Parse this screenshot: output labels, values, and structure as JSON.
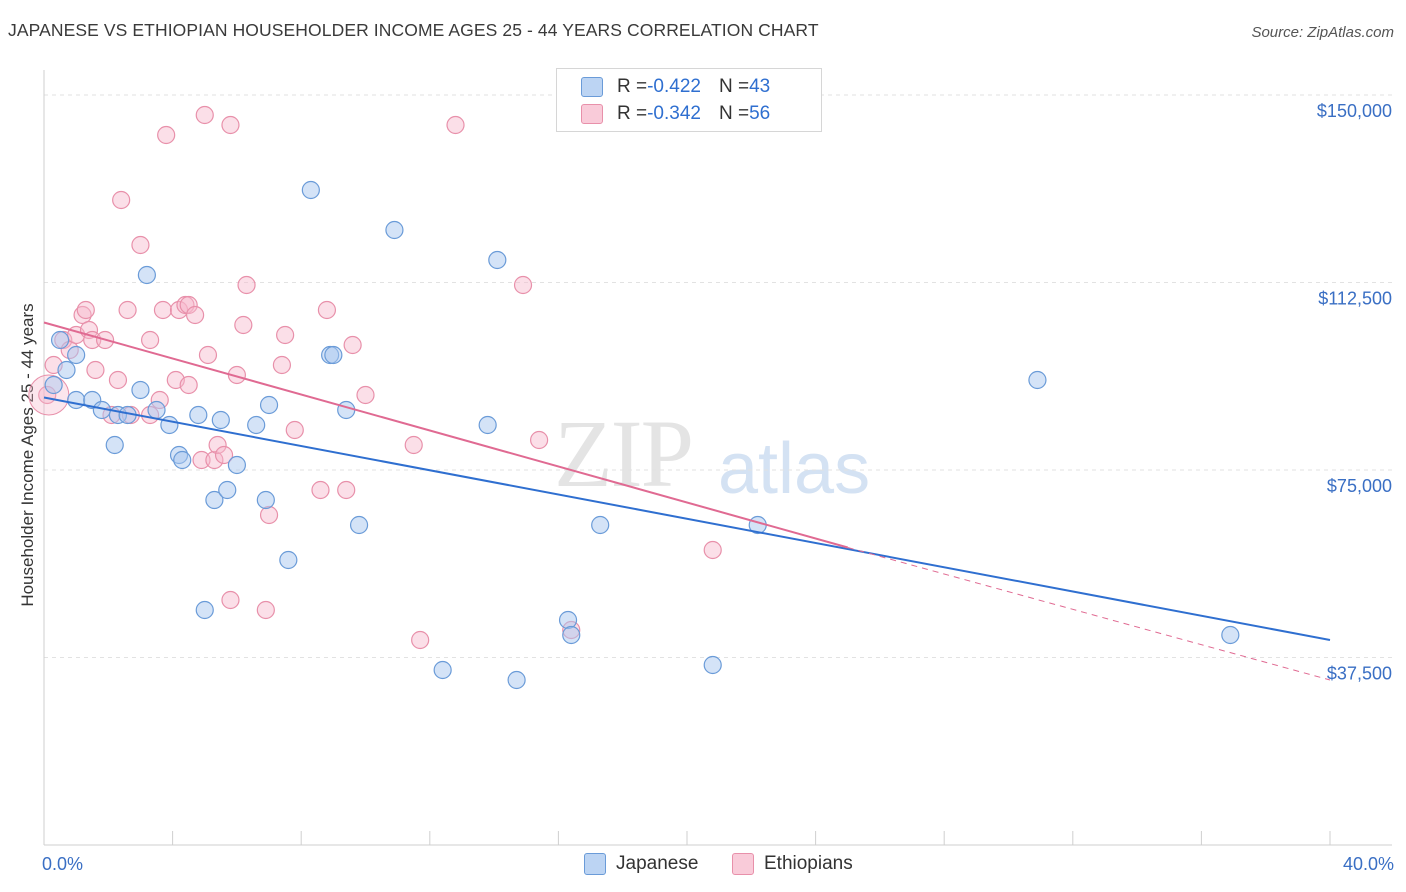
{
  "title": "JAPANESE VS ETHIOPIAN HOUSEHOLDER INCOME AGES 25 - 44 YEARS CORRELATION CHART",
  "source": "Source: ZipAtlas.com",
  "watermark": {
    "zip": "ZIP",
    "atlas": "atlas"
  },
  "stats": {
    "japanese": {
      "r_label": "R = ",
      "r": "-0.422",
      "n_label": "N = ",
      "n": "43"
    },
    "ethiopian": {
      "r_label": "R = ",
      "r": "-0.342",
      "n_label": "N = ",
      "n": "56"
    }
  },
  "legend": {
    "japanese": "Japanese",
    "ethiopians": "Ethiopians"
  },
  "colors": {
    "japanese_fill": "#a9c8f0",
    "japanese_stroke": "#6a9bd8",
    "japanese_line": "#2f6fd0",
    "ethiopian_fill": "#f7b8cb",
    "ethiopian_stroke": "#e890aa",
    "ethiopian_line": "#e06a92",
    "tick": "#3a6fc4",
    "grid": "#e2e2e2"
  },
  "chart_data": {
    "type": "scatter",
    "title": "JAPANESE VS ETHIOPIAN HOUSEHOLDER INCOME AGES 25 - 44 YEARS CORRELATION CHART",
    "xlabel": "",
    "ylabel": "Householder Income Ages 25 - 44 years",
    "xlim": [
      0,
      40
    ],
    "ylim": [
      0,
      155000
    ],
    "x_tick_labels": [
      {
        "value": 0,
        "label": "0.0%"
      },
      {
        "value": 40,
        "label": "40.0%"
      }
    ],
    "y_ticks": [
      {
        "value": 37500,
        "label": "$37,500"
      },
      {
        "value": 75000,
        "label": "$75,000"
      },
      {
        "value": 112500,
        "label": "$112,500"
      },
      {
        "value": 150000,
        "label": "$150,000"
      }
    ],
    "series": [
      {
        "name": "Japanese",
        "trend": {
          "x0": 0,
          "y0": 89500,
          "x1": 40,
          "y1": 41000
        },
        "points": [
          [
            0.3,
            92000
          ],
          [
            0.5,
            101000
          ],
          [
            0.7,
            95000
          ],
          [
            1.0,
            98000
          ],
          [
            1.0,
            89000
          ],
          [
            1.5,
            89000
          ],
          [
            1.8,
            87000
          ],
          [
            2.2,
            80000
          ],
          [
            2.3,
            86000
          ],
          [
            2.6,
            86000
          ],
          [
            3.2,
            114000
          ],
          [
            3.0,
            91000
          ],
          [
            3.5,
            87000
          ],
          [
            3.9,
            84000
          ],
          [
            4.2,
            78000
          ],
          [
            4.3,
            77000
          ],
          [
            4.8,
            86000
          ],
          [
            5.0,
            47000
          ],
          [
            5.3,
            69000
          ],
          [
            5.5,
            85000
          ],
          [
            5.7,
            71000
          ],
          [
            6.0,
            76000
          ],
          [
            6.6,
            84000
          ],
          [
            6.9,
            69000
          ],
          [
            7.0,
            88000
          ],
          [
            7.6,
            57000
          ],
          [
            8.3,
            131000
          ],
          [
            8.9,
            98000
          ],
          [
            9.0,
            98000
          ],
          [
            9.4,
            87000
          ],
          [
            9.8,
            64000
          ],
          [
            10.9,
            123000
          ],
          [
            12.4,
            35000
          ],
          [
            13.8,
            84000
          ],
          [
            14.1,
            117000
          ],
          [
            14.7,
            33000
          ],
          [
            16.3,
            45000
          ],
          [
            16.4,
            42000
          ],
          [
            17.3,
            64000
          ],
          [
            20.8,
            36000
          ],
          [
            22.2,
            64000
          ],
          [
            30.9,
            93000
          ],
          [
            36.9,
            42000
          ]
        ]
      },
      {
        "name": "Ethiopians",
        "trend": {
          "x0": 0,
          "y0": 104500,
          "x1": 25,
          "y1": 59500,
          "dash_x1": 40,
          "dash_y1": 33000
        },
        "points": [
          [
            0.1,
            90000
          ],
          [
            0.3,
            96000
          ],
          [
            0.6,
            101000
          ],
          [
            0.8,
            99000
          ],
          [
            1.0,
            102000
          ],
          [
            1.2,
            106000
          ],
          [
            1.3,
            107000
          ],
          [
            1.4,
            103000
          ],
          [
            1.5,
            101000
          ],
          [
            1.6,
            95000
          ],
          [
            1.9,
            101000
          ],
          [
            2.1,
            86000
          ],
          [
            2.3,
            93000
          ],
          [
            2.4,
            129000
          ],
          [
            2.6,
            107000
          ],
          [
            2.7,
            86000
          ],
          [
            3.0,
            120000
          ],
          [
            3.3,
            86000
          ],
          [
            3.3,
            101000
          ],
          [
            3.6,
            89000
          ],
          [
            3.7,
            107000
          ],
          [
            3.8,
            142000
          ],
          [
            4.1,
            93000
          ],
          [
            4.2,
            107000
          ],
          [
            4.4,
            108000
          ],
          [
            4.5,
            108000
          ],
          [
            4.5,
            92000
          ],
          [
            4.7,
            106000
          ],
          [
            4.9,
            77000
          ],
          [
            5.0,
            146000
          ],
          [
            5.1,
            98000
          ],
          [
            5.3,
            77000
          ],
          [
            5.4,
            80000
          ],
          [
            5.6,
            78000
          ],
          [
            5.8,
            144000
          ],
          [
            5.8,
            49000
          ],
          [
            6.0,
            94000
          ],
          [
            6.2,
            104000
          ],
          [
            6.3,
            112000
          ],
          [
            6.9,
            47000
          ],
          [
            7.0,
            66000
          ],
          [
            7.4,
            96000
          ],
          [
            7.5,
            102000
          ],
          [
            7.8,
            83000
          ],
          [
            8.6,
            71000
          ],
          [
            8.8,
            107000
          ],
          [
            9.4,
            71000
          ],
          [
            9.6,
            100000
          ],
          [
            10.0,
            90000
          ],
          [
            11.5,
            80000
          ],
          [
            11.7,
            41000
          ],
          [
            12.8,
            144000
          ],
          [
            14.9,
            112000
          ],
          [
            15.4,
            81000
          ],
          [
            20.8,
            59000
          ],
          [
            16.4,
            43000
          ]
        ]
      }
    ]
  }
}
